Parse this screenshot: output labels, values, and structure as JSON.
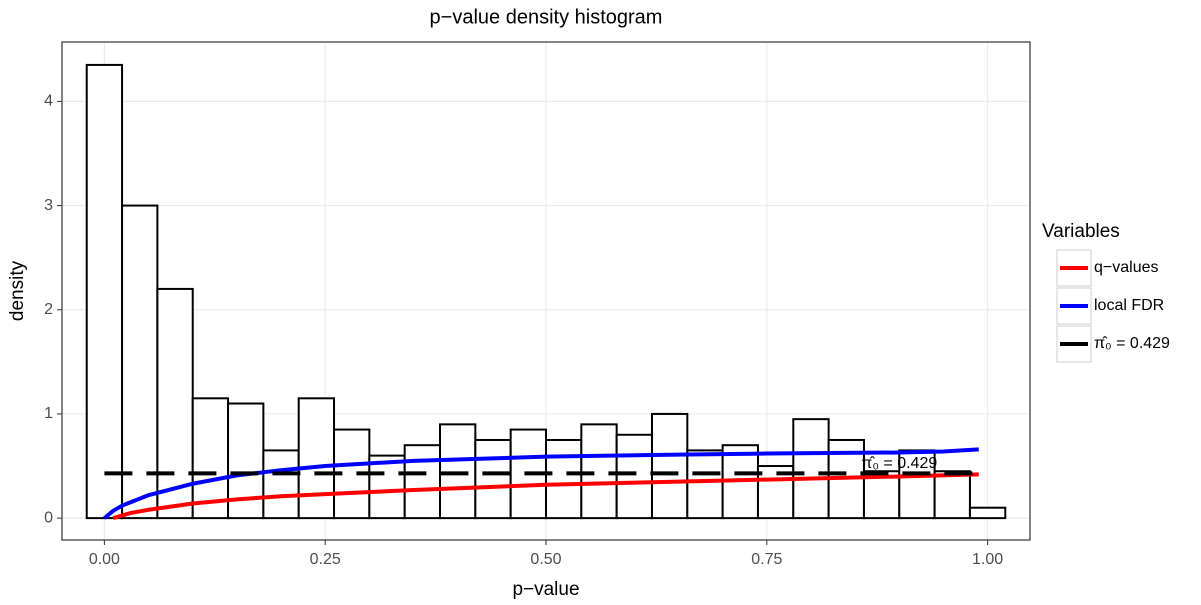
{
  "chart_data": {
    "type": "histogram",
    "title": "p−value density histogram",
    "x_label": "p−value",
    "y_label": "density",
    "bins": [
      -0.02,
      0.02,
      0.06,
      0.1,
      0.14,
      0.18,
      0.22,
      0.26,
      0.3,
      0.34,
      0.38,
      0.42,
      0.46,
      0.5,
      0.54,
      0.58,
      0.62,
      0.66,
      0.7,
      0.74,
      0.78,
      0.82,
      0.86,
      0.9,
      0.94,
      0.98,
      1.02
    ],
    "values": [
      4.35,
      3.0,
      2.2,
      1.15,
      1.1,
      0.65,
      1.15,
      0.85,
      0.6,
      0.7,
      0.9,
      0.75,
      0.85,
      0.75,
      0.9,
      0.8,
      1.0,
      0.65,
      0.7,
      0.5,
      0.95,
      0.75,
      0.45,
      0.65,
      0.45,
      0.1
    ],
    "bar_fill": "#ffffff",
    "bar_stroke": "#000000",
    "series": [
      {
        "name": "q−values",
        "color": "#ff0000",
        "dashed": false,
        "x": [
          0.01,
          0.03,
          0.05,
          0.1,
          0.15,
          0.2,
          0.25,
          0.35,
          0.5,
          0.65,
          0.75,
          0.9,
          0.99
        ],
        "values": [
          0.0,
          0.05,
          0.08,
          0.14,
          0.18,
          0.21,
          0.23,
          0.27,
          0.32,
          0.35,
          0.37,
          0.4,
          0.42
        ]
      },
      {
        "name": "local FDR",
        "color": "#0000ff",
        "dashed": false,
        "x": [
          0.0,
          0.01,
          0.02,
          0.05,
          0.1,
          0.15,
          0.2,
          0.25,
          0.35,
          0.5,
          0.65,
          0.75,
          0.9,
          0.95,
          0.99
        ],
        "values": [
          0.0,
          0.07,
          0.12,
          0.22,
          0.33,
          0.41,
          0.46,
          0.5,
          0.55,
          0.59,
          0.61,
          0.62,
          0.63,
          0.64,
          0.66
        ]
      },
      {
        "name": "π̂₀ = 0.429",
        "color": "#000000",
        "dashed": true,
        "x": [
          0.0,
          0.99
        ],
        "values": [
          0.429,
          0.429
        ]
      }
    ],
    "annotation": {
      "text": "π̂₀ = 0.429",
      "x": 0.9,
      "y": 0.52
    },
    "legend_title": "Variables",
    "legend_position": "right",
    "xlim": [
      -0.048,
      1.048
    ],
    "ylim": [
      -0.21,
      4.57
    ],
    "xticks": [
      {
        "value": 0,
        "label": "0.00"
      },
      0.25,
      {
        "value": 0.5,
        "label": "0.50"
      },
      0.75,
      {
        "value": 1,
        "label": "1.00"
      }
    ],
    "yticks": [
      0,
      1,
      2,
      3,
      4
    ],
    "grid": true
  }
}
